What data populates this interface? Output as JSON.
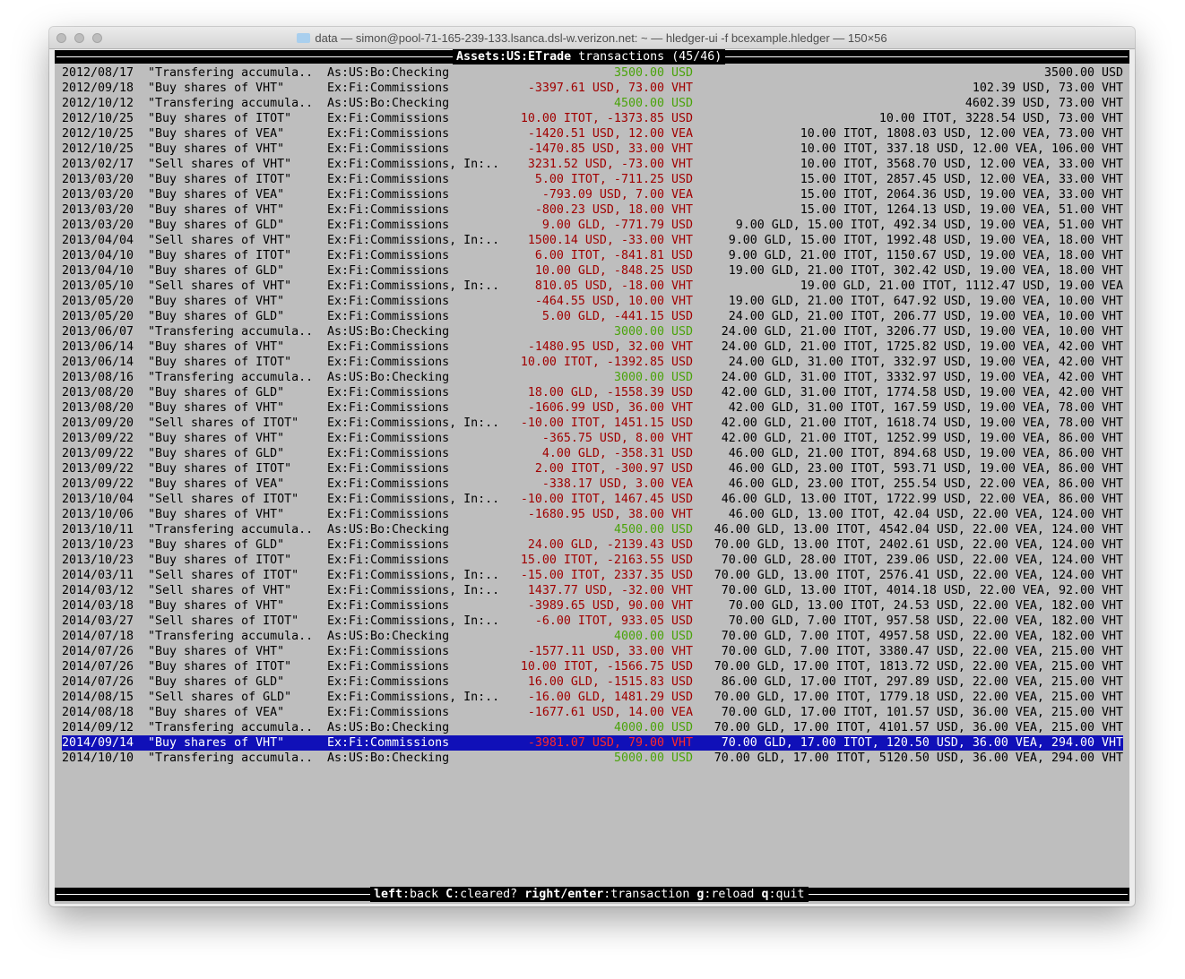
{
  "window": {
    "title": "data — simon@pool-71-165-239-133.lsanca.dsl-w.verizon.net: ~ — hledger-ui -f bcexample.hledger — 150×56"
  },
  "header": {
    "account": "Assets:US:ETrade",
    "label": "transactions",
    "count": "(45/46)"
  },
  "colors": {
    "background": "#bebebe",
    "negative": "#a00000",
    "positive": "#4aa30a",
    "selection": "#1010b8"
  },
  "selected_index": 44,
  "rows": [
    [
      "2012/08/17",
      "\"Transfering accumula..",
      "As:US:Bo:Checking",
      "3500.00 USD",
      "3500.00 USD"
    ],
    [
      "2012/09/18",
      "\"Buy shares of VHT\"",
      "Ex:Fi:Commissions",
      "-3397.61 USD, 73.00 VHT",
      "102.39 USD, 73.00 VHT"
    ],
    [
      "2012/10/12",
      "\"Transfering accumula..",
      "As:US:Bo:Checking",
      "4500.00 USD",
      "4602.39 USD, 73.00 VHT"
    ],
    [
      "2012/10/25",
      "\"Buy shares of ITOT\"",
      "Ex:Fi:Commissions",
      "10.00 ITOT, -1373.85 USD",
      "10.00 ITOT, 3228.54 USD, 73.00 VHT"
    ],
    [
      "2012/10/25",
      "\"Buy shares of VEA\"",
      "Ex:Fi:Commissions",
      "-1420.51 USD, 12.00 VEA",
      "10.00 ITOT, 1808.03 USD, 12.00 VEA, 73.00 VHT"
    ],
    [
      "2012/10/25",
      "\"Buy shares of VHT\"",
      "Ex:Fi:Commissions",
      "-1470.85 USD, 33.00 VHT",
      "10.00 ITOT, 337.18 USD, 12.00 VEA, 106.00 VHT"
    ],
    [
      "2013/02/17",
      "\"Sell shares of VHT\"",
      "Ex:Fi:Commissions, In:..",
      "3231.52 USD, -73.00 VHT",
      "10.00 ITOT, 3568.70 USD, 12.00 VEA, 33.00 VHT"
    ],
    [
      "2013/03/20",
      "\"Buy shares of ITOT\"",
      "Ex:Fi:Commissions",
      "5.00 ITOT, -711.25 USD",
      "15.00 ITOT, 2857.45 USD, 12.00 VEA, 33.00 VHT"
    ],
    [
      "2013/03/20",
      "\"Buy shares of VEA\"",
      "Ex:Fi:Commissions",
      "-793.09 USD, 7.00 VEA",
      "15.00 ITOT, 2064.36 USD, 19.00 VEA, 33.00 VHT"
    ],
    [
      "2013/03/20",
      "\"Buy shares of VHT\"",
      "Ex:Fi:Commissions",
      "-800.23 USD, 18.00 VHT",
      "15.00 ITOT, 1264.13 USD, 19.00 VEA, 51.00 VHT"
    ],
    [
      "2013/03/20",
      "\"Buy shares of GLD\"",
      "Ex:Fi:Commissions",
      "9.00 GLD, -771.79 USD",
      "9.00 GLD, 15.00 ITOT, 492.34 USD, 19.00 VEA, 51.00 VHT"
    ],
    [
      "2013/04/04",
      "\"Sell shares of VHT\"",
      "Ex:Fi:Commissions, In:..",
      "1500.14 USD, -33.00 VHT",
      "9.00 GLD, 15.00 ITOT, 1992.48 USD, 19.00 VEA, 18.00 VHT"
    ],
    [
      "2013/04/10",
      "\"Buy shares of ITOT\"",
      "Ex:Fi:Commissions",
      "6.00 ITOT, -841.81 USD",
      "9.00 GLD, 21.00 ITOT, 1150.67 USD, 19.00 VEA, 18.00 VHT"
    ],
    [
      "2013/04/10",
      "\"Buy shares of GLD\"",
      "Ex:Fi:Commissions",
      "10.00 GLD, -848.25 USD",
      "19.00 GLD, 21.00 ITOT, 302.42 USD, 19.00 VEA, 18.00 VHT"
    ],
    [
      "2013/05/10",
      "\"Sell shares of VHT\"",
      "Ex:Fi:Commissions, In:..",
      "810.05 USD, -18.00 VHT",
      "19.00 GLD, 21.00 ITOT, 1112.47 USD, 19.00 VEA"
    ],
    [
      "2013/05/20",
      "\"Buy shares of VHT\"",
      "Ex:Fi:Commissions",
      "-464.55 USD, 10.00 VHT",
      "19.00 GLD, 21.00 ITOT, 647.92 USD, 19.00 VEA, 10.00 VHT"
    ],
    [
      "2013/05/20",
      "\"Buy shares of GLD\"",
      "Ex:Fi:Commissions",
      "5.00 GLD, -441.15 USD",
      "24.00 GLD, 21.00 ITOT, 206.77 USD, 19.00 VEA, 10.00 VHT"
    ],
    [
      "2013/06/07",
      "\"Transfering accumula..",
      "As:US:Bo:Checking",
      "3000.00 USD",
      "24.00 GLD, 21.00 ITOT, 3206.77 USD, 19.00 VEA, 10.00 VHT"
    ],
    [
      "2013/06/14",
      "\"Buy shares of VHT\"",
      "Ex:Fi:Commissions",
      "-1480.95 USD, 32.00 VHT",
      "24.00 GLD, 21.00 ITOT, 1725.82 USD, 19.00 VEA, 42.00 VHT"
    ],
    [
      "2013/06/14",
      "\"Buy shares of ITOT\"",
      "Ex:Fi:Commissions",
      "10.00 ITOT, -1392.85 USD",
      "24.00 GLD, 31.00 ITOT, 332.97 USD, 19.00 VEA, 42.00 VHT"
    ],
    [
      "2013/08/16",
      "\"Transfering accumula..",
      "As:US:Bo:Checking",
      "3000.00 USD",
      "24.00 GLD, 31.00 ITOT, 3332.97 USD, 19.00 VEA, 42.00 VHT"
    ],
    [
      "2013/08/20",
      "\"Buy shares of GLD\"",
      "Ex:Fi:Commissions",
      "18.00 GLD, -1558.39 USD",
      "42.00 GLD, 31.00 ITOT, 1774.58 USD, 19.00 VEA, 42.00 VHT"
    ],
    [
      "2013/08/20",
      "\"Buy shares of VHT\"",
      "Ex:Fi:Commissions",
      "-1606.99 USD, 36.00 VHT",
      "42.00 GLD, 31.00 ITOT, 167.59 USD, 19.00 VEA, 78.00 VHT"
    ],
    [
      "2013/09/20",
      "\"Sell shares of ITOT\"",
      "Ex:Fi:Commissions, In:..",
      "-10.00 ITOT, 1451.15 USD",
      "42.00 GLD, 21.00 ITOT, 1618.74 USD, 19.00 VEA, 78.00 VHT"
    ],
    [
      "2013/09/22",
      "\"Buy shares of VHT\"",
      "Ex:Fi:Commissions",
      "-365.75 USD, 8.00 VHT",
      "42.00 GLD, 21.00 ITOT, 1252.99 USD, 19.00 VEA, 86.00 VHT"
    ],
    [
      "2013/09/22",
      "\"Buy shares of GLD\"",
      "Ex:Fi:Commissions",
      "4.00 GLD, -358.31 USD",
      "46.00 GLD, 21.00 ITOT, 894.68 USD, 19.00 VEA, 86.00 VHT"
    ],
    [
      "2013/09/22",
      "\"Buy shares of ITOT\"",
      "Ex:Fi:Commissions",
      "2.00 ITOT, -300.97 USD",
      "46.00 GLD, 23.00 ITOT, 593.71 USD, 19.00 VEA, 86.00 VHT"
    ],
    [
      "2013/09/22",
      "\"Buy shares of VEA\"",
      "Ex:Fi:Commissions",
      "-338.17 USD, 3.00 VEA",
      "46.00 GLD, 23.00 ITOT, 255.54 USD, 22.00 VEA, 86.00 VHT"
    ],
    [
      "2013/10/04",
      "\"Sell shares of ITOT\"",
      "Ex:Fi:Commissions, In:..",
      "-10.00 ITOT, 1467.45 USD",
      "46.00 GLD, 13.00 ITOT, 1722.99 USD, 22.00 VEA, 86.00 VHT"
    ],
    [
      "2013/10/06",
      "\"Buy shares of VHT\"",
      "Ex:Fi:Commissions",
      "-1680.95 USD, 38.00 VHT",
      "46.00 GLD, 13.00 ITOT, 42.04 USD, 22.00 VEA, 124.00 VHT"
    ],
    [
      "2013/10/11",
      "\"Transfering accumula..",
      "As:US:Bo:Checking",
      "4500.00 USD",
      "46.00 GLD, 13.00 ITOT, 4542.04 USD, 22.00 VEA, 124.00 VHT"
    ],
    [
      "2013/10/23",
      "\"Buy shares of GLD\"",
      "Ex:Fi:Commissions",
      "24.00 GLD, -2139.43 USD",
      "70.00 GLD, 13.00 ITOT, 2402.61 USD, 22.00 VEA, 124.00 VHT"
    ],
    [
      "2013/10/23",
      "\"Buy shares of ITOT\"",
      "Ex:Fi:Commissions",
      "15.00 ITOT, -2163.55 USD",
      "70.00 GLD, 28.00 ITOT, 239.06 USD, 22.00 VEA, 124.00 VHT"
    ],
    [
      "2014/03/11",
      "\"Sell shares of ITOT\"",
      "Ex:Fi:Commissions, In:..",
      "-15.00 ITOT, 2337.35 USD",
      "70.00 GLD, 13.00 ITOT, 2576.41 USD, 22.00 VEA, 124.00 VHT"
    ],
    [
      "2014/03/12",
      "\"Sell shares of VHT\"",
      "Ex:Fi:Commissions, In:..",
      "1437.77 USD, -32.00 VHT",
      "70.00 GLD, 13.00 ITOT, 4014.18 USD, 22.00 VEA, 92.00 VHT"
    ],
    [
      "2014/03/18",
      "\"Buy shares of VHT\"",
      "Ex:Fi:Commissions",
      "-3989.65 USD, 90.00 VHT",
      "70.00 GLD, 13.00 ITOT, 24.53 USD, 22.00 VEA, 182.00 VHT"
    ],
    [
      "2014/03/27",
      "\"Sell shares of ITOT\"",
      "Ex:Fi:Commissions, In:..",
      "-6.00 ITOT, 933.05 USD",
      "70.00 GLD, 7.00 ITOT, 957.58 USD, 22.00 VEA, 182.00 VHT"
    ],
    [
      "2014/07/18",
      "\"Transfering accumula..",
      "As:US:Bo:Checking",
      "4000.00 USD",
      "70.00 GLD, 7.00 ITOT, 4957.58 USD, 22.00 VEA, 182.00 VHT"
    ],
    [
      "2014/07/26",
      "\"Buy shares of VHT\"",
      "Ex:Fi:Commissions",
      "-1577.11 USD, 33.00 VHT",
      "70.00 GLD, 7.00 ITOT, 3380.47 USD, 22.00 VEA, 215.00 VHT"
    ],
    [
      "2014/07/26",
      "\"Buy shares of ITOT\"",
      "Ex:Fi:Commissions",
      "10.00 ITOT, -1566.75 USD",
      "70.00 GLD, 17.00 ITOT, 1813.72 USD, 22.00 VEA, 215.00 VHT"
    ],
    [
      "2014/07/26",
      "\"Buy shares of GLD\"",
      "Ex:Fi:Commissions",
      "16.00 GLD, -1515.83 USD",
      "86.00 GLD, 17.00 ITOT, 297.89 USD, 22.00 VEA, 215.00 VHT"
    ],
    [
      "2014/08/15",
      "\"Sell shares of GLD\"",
      "Ex:Fi:Commissions, In:..",
      "-16.00 GLD, 1481.29 USD",
      "70.00 GLD, 17.00 ITOT, 1779.18 USD, 22.00 VEA, 215.00 VHT"
    ],
    [
      "2014/08/18",
      "\"Buy shares of VEA\"",
      "Ex:Fi:Commissions",
      "-1677.61 USD, 14.00 VEA",
      "70.00 GLD, 17.00 ITOT, 101.57 USD, 36.00 VEA, 215.00 VHT"
    ],
    [
      "2014/09/12",
      "\"Transfering accumula..",
      "As:US:Bo:Checking",
      "4000.00 USD",
      "70.00 GLD, 17.00 ITOT, 4101.57 USD, 36.00 VEA, 215.00 VHT"
    ],
    [
      "2014/09/14",
      "\"Buy shares of VHT\"",
      "Ex:Fi:Commissions",
      "-3981.07 USD, 79.00 VHT",
      "70.00 GLD, 17.00 ITOT, 120.50 USD, 36.00 VEA, 294.00 VHT"
    ],
    [
      "2014/10/10",
      "\"Transfering accumula..",
      "As:US:Bo:Checking",
      "5000.00 USD",
      "70.00 GLD, 17.00 ITOT, 5120.50 USD, 36.00 VEA, 294.00 VHT"
    ]
  ],
  "footer": {
    "keys": [
      {
        "key": "left",
        "action": "back"
      },
      {
        "key": "C",
        "action": "cleared?"
      },
      {
        "key": "right/enter",
        "action": "transaction"
      },
      {
        "key": "g",
        "action": "reload"
      },
      {
        "key": "q",
        "action": "quit"
      }
    ]
  }
}
